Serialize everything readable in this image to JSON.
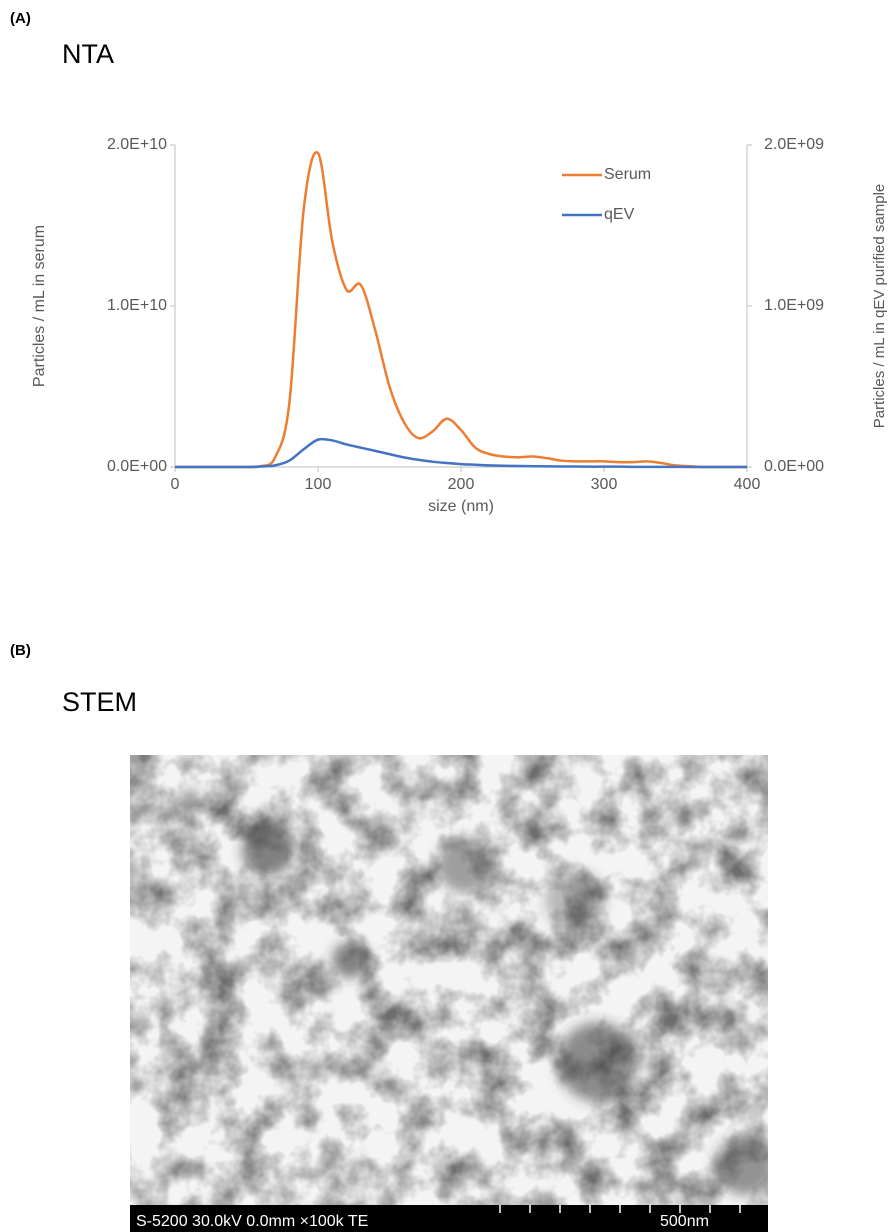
{
  "panels": [
    {
      "label": "(A)",
      "title": "NTA"
    },
    {
      "label": "(B)",
      "title": "STEM",
      "image_caption": "S-5200 30.0kV 0.0mm ×100k TE",
      "scale_bar": "500nm"
    }
  ],
  "chart_data": {
    "type": "line",
    "x_label": "size (nm)",
    "y_label": "Particles / mL in serum",
    "y2_label": "Particles / mL in qEV purified sample",
    "x": [
      0,
      10,
      20,
      30,
      40,
      50,
      60,
      70,
      80,
      90,
      100,
      110,
      120,
      130,
      140,
      150,
      160,
      170,
      180,
      190,
      200,
      210,
      220,
      230,
      240,
      250,
      260,
      270,
      280,
      290,
      300,
      310,
      320,
      330,
      340,
      350,
      360,
      370,
      380,
      390,
      400
    ],
    "series": [
      {
        "name": "Serum",
        "color": "#ed7d31",
        "values": [
          0,
          0,
          0,
          0,
          0,
          0,
          50000000,
          600000000,
          4000000000,
          16000000000,
          19500000000,
          14000000000,
          11000000000,
          11300000000,
          8500000000,
          5000000000,
          2800000000,
          1800000000,
          2200000000,
          3000000000,
          2300000000,
          1200000000,
          800000000,
          650000000,
          600000000,
          650000000,
          550000000,
          400000000,
          350000000,
          350000000,
          350000000,
          300000000,
          300000000,
          350000000,
          250000000,
          100000000,
          50000000,
          0,
          0,
          0,
          0
        ]
      },
      {
        "name": "qEV",
        "color": "#4472c4",
        "axis": "y2",
        "values": [
          0,
          0,
          0,
          0,
          0,
          0,
          3000000,
          10000000,
          40000000,
          110000000,
          170000000,
          165000000,
          140000000,
          120000000,
          100000000,
          80000000,
          60000000,
          45000000,
          33000000,
          25000000,
          18000000,
          14000000,
          10000000,
          8000000,
          6000000,
          5000000,
          4000000,
          3000000,
          3000000,
          2000000,
          2000000,
          2000000,
          1000000,
          1000000,
          1000000,
          1000000,
          0,
          0,
          0,
          0,
          0
        ]
      }
    ],
    "xlim": [
      0,
      400
    ],
    "xticks": [
      0,
      100,
      200,
      300,
      400
    ],
    "ylim": [
      0,
      20000000000
    ],
    "yticks": [
      {
        "value": 0,
        "label": "0.0E+00"
      },
      {
        "value": 10000000000,
        "label": "1.0E+10"
      },
      {
        "value": 20000000000,
        "label": "2.0E+10"
      }
    ],
    "y2lim": [
      0,
      2000000000
    ],
    "y2ticks": [
      {
        "value": 0,
        "label": "0.0E+00"
      },
      {
        "value": 1000000000,
        "label": "1.0E+09"
      },
      {
        "value": 2000000000,
        "label": "2.0E+09"
      }
    ],
    "legend": "upper right",
    "grid": false
  }
}
